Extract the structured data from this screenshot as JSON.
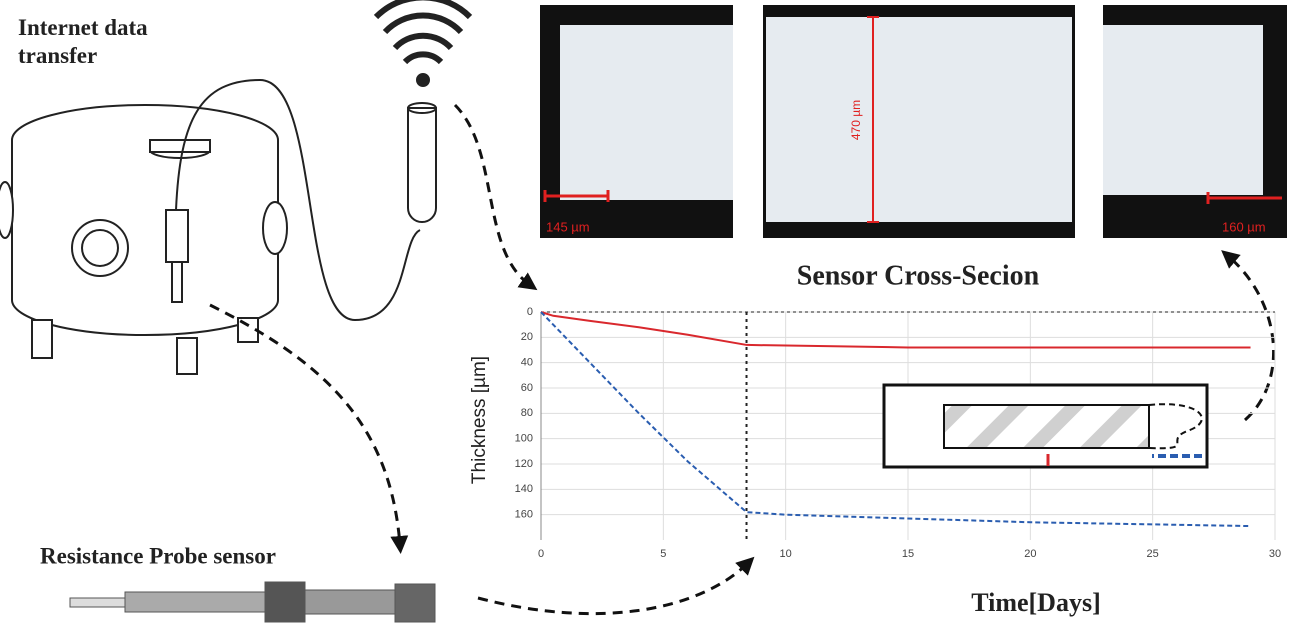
{
  "labels": {
    "internet": "Internet data transfer",
    "probe": "Resistance Probe sensor",
    "cross_section": "Sensor Cross-Secion"
  },
  "micrographs": [
    {
      "scale": "145 µm"
    },
    {
      "scale": "470 µm"
    },
    {
      "scale": "160 µm"
    }
  ],
  "chart_data": {
    "type": "line",
    "x_label": "Time[Days]",
    "y_label": "Thickness [µm]",
    "xlim": [
      0,
      30
    ],
    "xticks": [
      0,
      5,
      10,
      15,
      20,
      25,
      30
    ],
    "ylim": [
      0,
      180
    ],
    "y_inverted": true,
    "yticks": [
      0,
      20,
      40,
      60,
      80,
      100,
      120,
      140,
      160
    ],
    "grid": true,
    "vline_x": 8.4,
    "series": [
      {
        "x": [
          0,
          0.5,
          2,
          4,
          6,
          8.4,
          15,
          29
        ],
        "values": [
          0,
          3,
          7,
          12,
          18,
          26,
          28,
          28
        ],
        "color": "#d9282d",
        "style": "solid"
      },
      {
        "x": [
          0,
          2,
          4,
          6,
          8.4,
          10,
          20,
          29
        ],
        "values": [
          0,
          40,
          80,
          118,
          158,
          160,
          166,
          169
        ],
        "color": "#2a5db0",
        "style": "dashed"
      }
    ]
  }
}
